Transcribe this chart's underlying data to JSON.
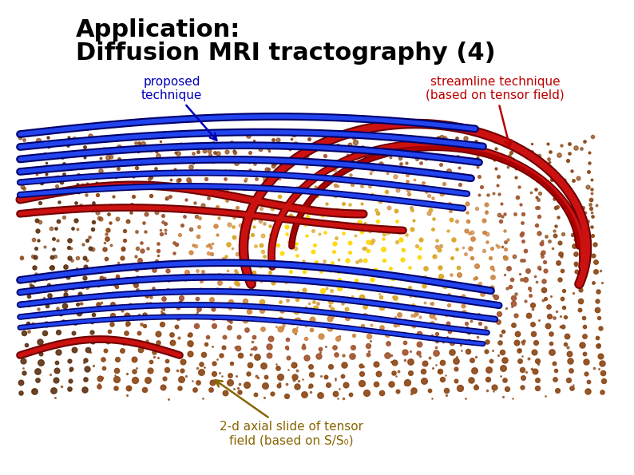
{
  "title_line1": "Application:",
  "title_line2": "Diffusion MRI tractography (4)",
  "title_color": "#000000",
  "title_fontsize": 22,
  "label_proposed_text": "proposed\ntechnique",
  "label_proposed_color": "#0000bb",
  "label_streamline_text": "streamline technique\n(based on tensor field)",
  "label_streamline_color": "#bb0000",
  "label_axial_text": "2-d axial slide of tensor\nfield (based on S/S₀)",
  "label_axial_color": "#886600",
  "label_fontsize": 11,
  "background_color": "#ffffff",
  "arrow_proposed_color": "#0000bb",
  "arrow_streamline_color": "#bb0000",
  "arrow_axial_color": "#886600"
}
